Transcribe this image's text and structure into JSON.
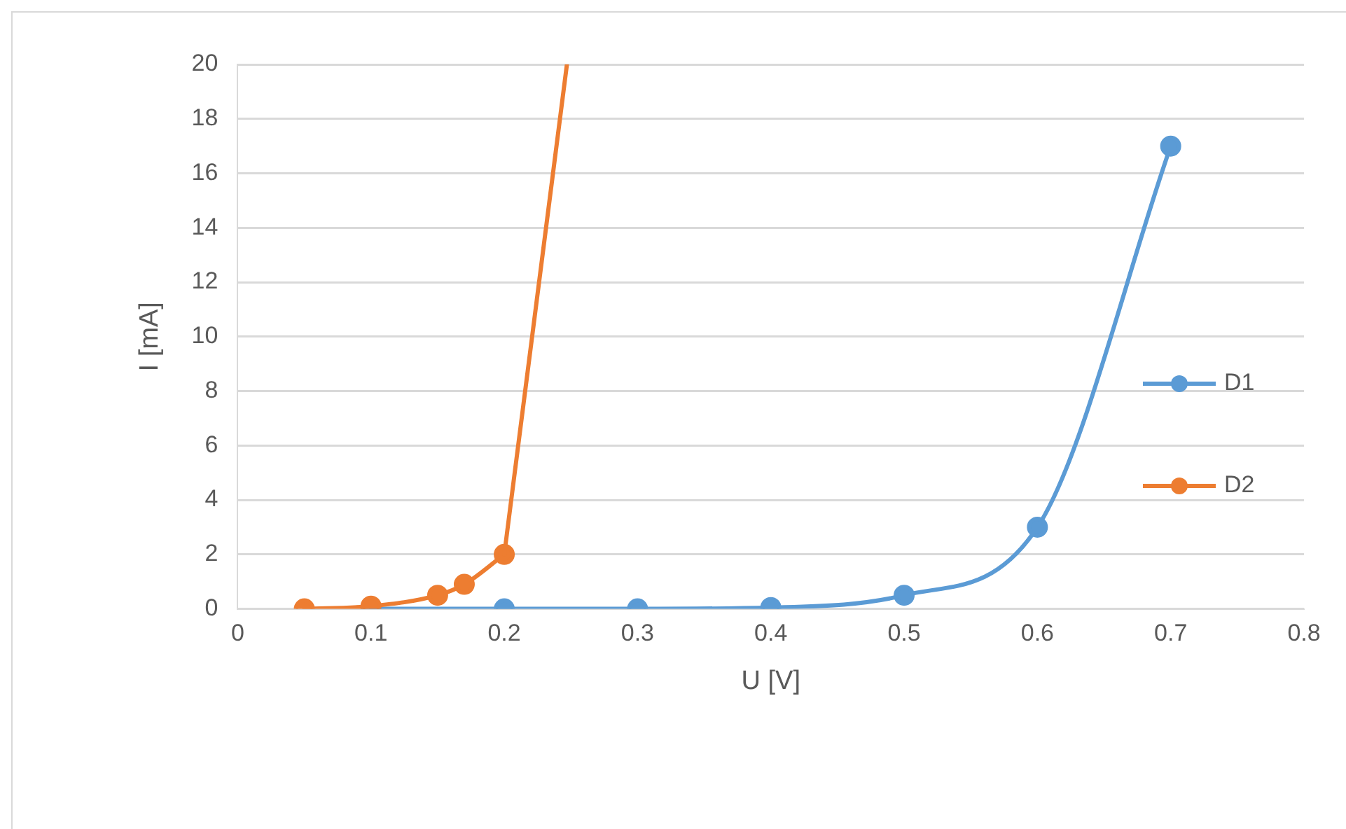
{
  "chart_data": {
    "type": "line",
    "xlabel": "U [V]",
    "ylabel": "I [mA]",
    "xlim": [
      0,
      0.8
    ],
    "xticks": [
      0,
      0.1,
      0.2,
      0.3,
      0.4,
      0.5,
      0.6,
      0.7,
      0.8
    ],
    "ylim": [
      0,
      20
    ],
    "yticks": [
      0,
      2,
      4,
      6,
      8,
      10,
      12,
      14,
      16,
      18,
      20
    ],
    "grid": "y",
    "legend": "right",
    "marker": "circle",
    "series": [
      {
        "name": "D1",
        "color": "#5b9bd5",
        "x": [
          0.1,
          0.2,
          0.3,
          0.4,
          0.5,
          0.6,
          0.7
        ],
        "values": [
          0,
          0,
          0,
          0.05,
          0.5,
          3,
          17
        ]
      },
      {
        "name": "D2",
        "color": "#ed7d31",
        "x": [
          0.05,
          0.1,
          0.15,
          0.17,
          0.2
        ],
        "values": [
          0,
          0.1,
          0.5,
          0.9,
          2
        ]
      },
      {
        "color": "#ed7d31",
        "marker": "none",
        "x": [
          0.2,
          0.247
        ],
        "values": [
          2,
          20
        ]
      }
    ]
  }
}
